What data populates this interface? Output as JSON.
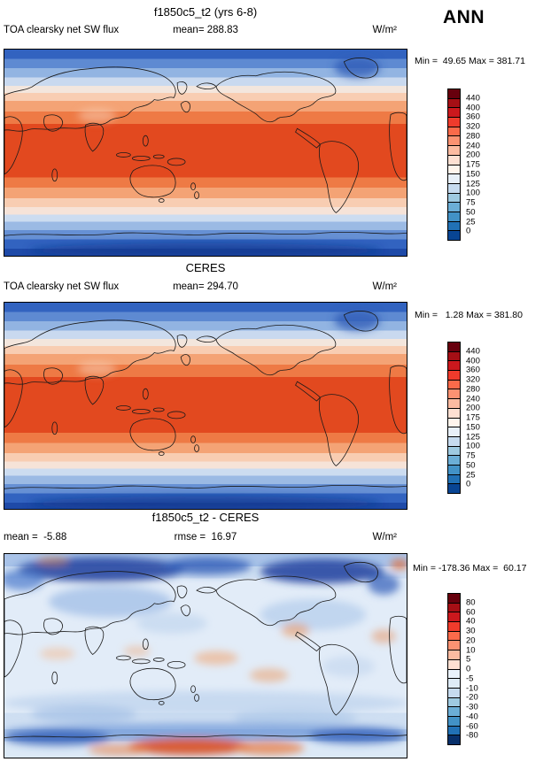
{
  "header": {
    "season_label": "ANN"
  },
  "panels": [
    {
      "title": "f1850c5_t2 (yrs 6-8)",
      "var_label": "TOA clearsky net SW flux",
      "mean_label": "mean= 288.83",
      "units": "W/m²",
      "minmax": "Min =  49.65 Max = 381.71",
      "colorbar": {
        "colors": [
          "#67000d",
          "#a50f15",
          "#cb181d",
          "#ef3b2c",
          "#fb6a4a",
          "#fc9272",
          "#fcbba1",
          "#fee0d2",
          "#fff5ec",
          "#e8f0f8",
          "#c6dbef",
          "#9ecae1",
          "#6baed6",
          "#4292c6",
          "#2171b5",
          "#084594"
        ],
        "ticks": [
          "440",
          "400",
          "360",
          "320",
          "280",
          "240",
          "200",
          "175",
          "150",
          "125",
          "100",
          "75",
          "50",
          "25",
          "0"
        ]
      },
      "bands": [
        {
          "to": 0.045,
          "color": "#3263c0"
        },
        {
          "to": 0.09,
          "color": "#5e8ad2"
        },
        {
          "to": 0.135,
          "color": "#92b4e2"
        },
        {
          "to": 0.175,
          "color": "#c9d9ef"
        },
        {
          "to": 0.21,
          "color": "#f3e6dd"
        },
        {
          "to": 0.25,
          "color": "#f8cdb2"
        },
        {
          "to": 0.3,
          "color": "#f4a375"
        },
        {
          "to": 0.36,
          "color": "#ee7a45"
        },
        {
          "to": 0.62,
          "color": "#e2491f"
        },
        {
          "to": 0.67,
          "color": "#ee7a45"
        },
        {
          "to": 0.72,
          "color": "#f4a375"
        },
        {
          "to": 0.765,
          "color": "#f8cdb2"
        },
        {
          "to": 0.8,
          "color": "#f6e3d8"
        },
        {
          "to": 0.835,
          "color": "#ccdcf0"
        },
        {
          "to": 0.875,
          "color": "#9bbae4"
        },
        {
          "to": 0.92,
          "color": "#6690d4"
        },
        {
          "to": 0.965,
          "color": "#3263c0"
        },
        {
          "to": 1.0,
          "color": "#1e4aa8"
        }
      ]
    },
    {
      "title": "CERES",
      "var_label": "TOA clearsky net SW flux",
      "mean_label": "mean= 294.70",
      "units": "W/m²",
      "minmax": "Min =   1.28 Max = 381.80",
      "colorbar": {
        "colors": [
          "#67000d",
          "#a50f15",
          "#cb181d",
          "#ef3b2c",
          "#fb6a4a",
          "#fc9272",
          "#fcbba1",
          "#fee0d2",
          "#fff5ec",
          "#e8f0f8",
          "#c6dbef",
          "#9ecae1",
          "#6baed6",
          "#4292c6",
          "#2171b5",
          "#084594"
        ],
        "ticks": [
          "440",
          "400",
          "360",
          "320",
          "280",
          "240",
          "200",
          "175",
          "150",
          "125",
          "100",
          "75",
          "50",
          "25",
          "0"
        ]
      },
      "bands": [
        {
          "to": 0.045,
          "color": "#3263c0"
        },
        {
          "to": 0.09,
          "color": "#5e8ad2"
        },
        {
          "to": 0.135,
          "color": "#92b4e2"
        },
        {
          "to": 0.175,
          "color": "#c9d9ef"
        },
        {
          "to": 0.21,
          "color": "#f3e6dd"
        },
        {
          "to": 0.25,
          "color": "#f8cdb2"
        },
        {
          "to": 0.3,
          "color": "#f4a375"
        },
        {
          "to": 0.36,
          "color": "#ee7a45"
        },
        {
          "to": 0.63,
          "color": "#e2491f"
        },
        {
          "to": 0.68,
          "color": "#ee7a45"
        },
        {
          "to": 0.73,
          "color": "#f4a375"
        },
        {
          "to": 0.77,
          "color": "#f8cdb2"
        },
        {
          "to": 0.805,
          "color": "#f6e3d8"
        },
        {
          "to": 0.84,
          "color": "#ccdcf0"
        },
        {
          "to": 0.88,
          "color": "#9bbae4"
        },
        {
          "to": 0.925,
          "color": "#6690d4"
        },
        {
          "to": 0.97,
          "color": "#3263c0"
        },
        {
          "to": 1.0,
          "color": "#1e4aa8"
        }
      ]
    },
    {
      "title": "f1850c5_t2 - CERES",
      "mean_label": "mean =  -5.88",
      "rmse_label": "rmse =  16.97",
      "units": "W/m²",
      "minmax": "Min = -178.36 Max =  60.17",
      "colorbar": {
        "colors": [
          "#67000d",
          "#a50f15",
          "#cb181d",
          "#ef3b2c",
          "#fb6a4a",
          "#fc9272",
          "#fcbba1",
          "#fee0d2",
          "#eaf2fb",
          "#deebf7",
          "#c6dbef",
          "#9ecae1",
          "#6baed6",
          "#4292c6",
          "#2171b5",
          "#08306b"
        ],
        "ticks": [
          "80",
          "60",
          "40",
          "30",
          "20",
          "10",
          "5",
          "0",
          "-5",
          "-10",
          "-20",
          "-30",
          "-40",
          "-60",
          "-80"
        ]
      },
      "bands": [
        {
          "to": 0.06,
          "color": "#a9c3e8"
        },
        {
          "to": 0.12,
          "color": "#cfdff2"
        },
        {
          "to": 0.78,
          "color": "#e2ecf8"
        },
        {
          "to": 0.86,
          "color": "#cfdff2"
        },
        {
          "to": 0.92,
          "color": "#b3cbe9"
        },
        {
          "to": 1.0,
          "color": "#dce9f6"
        }
      ]
    }
  ],
  "chart_data": [
    {
      "type": "heatmap",
      "projection": "global lat-lon, Pacific-centered",
      "title": "f1850c5_t2 (yrs 6-8)",
      "variable": "TOA clearsky net SW flux",
      "season": "ANN",
      "units": "W/m²",
      "mean": 288.83,
      "min": 49.65,
      "max": 381.71,
      "levels": [
        0,
        25,
        50,
        75,
        100,
        125,
        150,
        175,
        200,
        240,
        280,
        320,
        360,
        400,
        440
      ],
      "palette": "blue(low)-to-darkred(high)",
      "pattern": "zonal bands: high values (320-400) in tropics, decreasing toward poles, lowest over Antarctica and Arctic"
    },
    {
      "type": "heatmap",
      "projection": "global lat-lon, Pacific-centered",
      "title": "CERES",
      "variable": "TOA clearsky net SW flux",
      "season": "ANN",
      "units": "W/m²",
      "mean": 294.7,
      "min": 1.28,
      "max": 381.8,
      "levels": [
        0,
        25,
        50,
        75,
        100,
        125,
        150,
        175,
        200,
        240,
        280,
        320,
        360,
        400,
        440
      ],
      "palette": "blue(low)-to-darkred(high)",
      "pattern": "zonal bands: high values (320-400) in tropics, decreasing toward poles, lowest over Antarctica and Arctic"
    },
    {
      "type": "heatmap",
      "projection": "global lat-lon, Pacific-centered",
      "title": "f1850c5_t2 - CERES",
      "variable": "TOA clearsky net SW flux difference (model minus obs)",
      "season": "ANN",
      "units": "W/m²",
      "mean": -5.88,
      "rmse": 16.97,
      "min": -178.36,
      "max": 60.17,
      "levels": [
        -80,
        -60,
        -40,
        -30,
        -20,
        -10,
        -5,
        0,
        5,
        10,
        20,
        30,
        40,
        60,
        80
      ],
      "palette": "blue(negative)-to-red(positive)",
      "pattern": "mostly weak negative (pale blue); strong negative over Arctic/Siberia/Canada and Antarctic coast; positive (red/orange) over Antarctic interior and scattered tropical/subtropical spots"
    }
  ]
}
